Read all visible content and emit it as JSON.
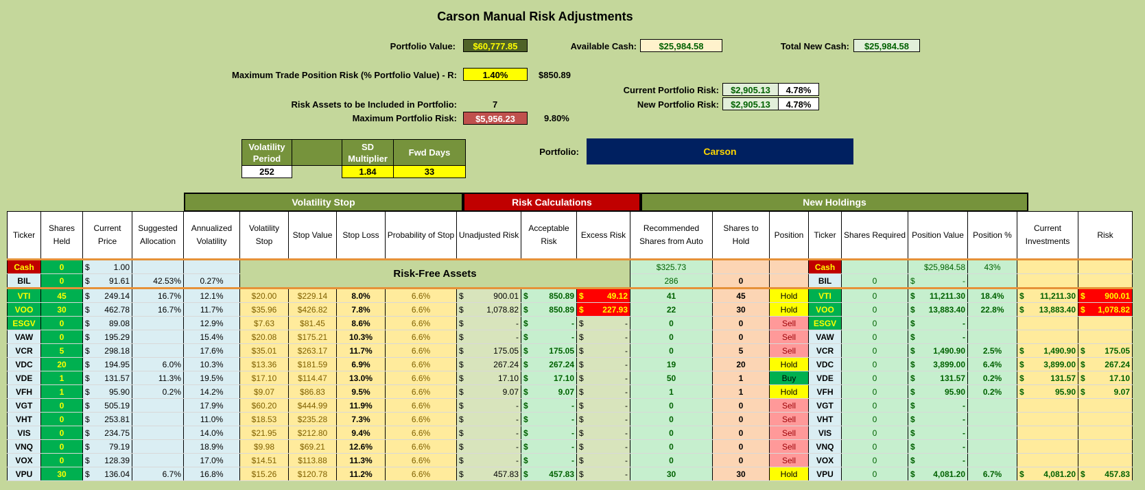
{
  "title": "Carson Manual Risk Adjustments",
  "portfolio_value": {
    "label": "Portfolio Value:",
    "value": "$60,777.85"
  },
  "available_cash": {
    "label": "Available Cash:",
    "value": "$25,984.58"
  },
  "total_new_cash": {
    "label": "Total New Cash:",
    "value": "$25,984.58"
  },
  "max_trade_risk": {
    "label": "Maximum Trade Position Risk (% Portfolio Value) - R:",
    "value": "1.40%",
    "amount": "$850.89"
  },
  "current_portfolio_risk": {
    "label": "Current Portfolio Risk:",
    "value": "$2,905.13",
    "pct": "4.78%"
  },
  "new_portfolio_risk": {
    "label": "New Portfolio Risk:",
    "value": "$2,905.13",
    "pct": "4.78%"
  },
  "risk_assets": {
    "label": "Risk Assets to be Included in Portfolio:",
    "value": "7"
  },
  "max_portfolio_risk": {
    "label": "Maximum Portfolio Risk:",
    "value": "$5,956.23",
    "pct": "9.80%"
  },
  "params": {
    "vol_period_label": "Volatility Period",
    "sd_label": "SD Multiplier",
    "fwd_label": "Fwd Days",
    "vol_period": "252",
    "sd": "1.84",
    "fwd": "33"
  },
  "portfolio": {
    "label": "Portfolio:",
    "value": "Carson"
  },
  "groups": {
    "vol_stop": "Volatility Stop",
    "risk_calc": "Risk Calculations",
    "new_holdings": "New Holdings"
  },
  "headers": [
    "Ticker",
    "Shares Held",
    "Current Price",
    "Suggested Allocation",
    "Annualized Volatility",
    "Volatility Stop",
    "Stop Value",
    "Stop Loss",
    "Probability of Stop",
    "Unadjusted Risk",
    "Acceptable Risk",
    "Excess Risk",
    "Recommended Shares from Auto",
    "Shares to Hold",
    "Position",
    "Ticker",
    "Shares Required",
    "Position Value",
    "Position %",
    "Current Investments",
    "Risk"
  ],
  "cash_row": {
    "ticker": "Cash",
    "shares": "0",
    "price": "1.00",
    "rec": "$325.73",
    "ticker2": "Cash",
    "pos_value": "$25,984.58",
    "pos_pct": "43%"
  },
  "bil_row": {
    "ticker": "BIL",
    "shares": "0",
    "price": "91.61",
    "alloc": "42.53%",
    "vol": "0.27%",
    "riskfree": "Risk-Free Assets",
    "rec": "286",
    "hold": "0",
    "ticker2": "BIL",
    "req": "0",
    "pos_value": "-"
  },
  "rows": [
    {
      "ticker": "VTI",
      "shares": "45",
      "price": "249.14",
      "alloc": "16.7%",
      "vol": "12.1%",
      "vstop": "$20.00",
      "sval": "$229.14",
      "sloss": "8.0%",
      "prob": "6.6%",
      "unadj": "900.01",
      "accept": "850.89",
      "excess": "49.12",
      "rec": "41",
      "hold": "45",
      "pos": "Hold",
      "ticker2": "VTI",
      "req": "0",
      "pval": "11,211.30",
      "ppct": "18.4%",
      "curinv": "11,211.30",
      "risk": "900.01"
    },
    {
      "ticker": "VOO",
      "shares": "30",
      "price": "462.78",
      "alloc": "16.7%",
      "vol": "11.7%",
      "vstop": "$35.96",
      "sval": "$426.82",
      "sloss": "7.8%",
      "prob": "6.6%",
      "unadj": "1,078.82",
      "accept": "850.89",
      "excess": "227.93",
      "rec": "22",
      "hold": "30",
      "pos": "Hold",
      "ticker2": "VOO",
      "req": "0",
      "pval": "13,883.40",
      "ppct": "22.8%",
      "curinv": "13,883.40",
      "risk": "1,078.82"
    },
    {
      "ticker": "ESGV",
      "shares": "0",
      "price": "89.08",
      "alloc": "",
      "vol": "12.9%",
      "vstop": "$7.63",
      "sval": "$81.45",
      "sloss": "8.6%",
      "prob": "6.6%",
      "unadj": "-",
      "accept": "-",
      "excess": "-",
      "rec": "0",
      "hold": "0",
      "pos": "Sell",
      "ticker2": "ESGV",
      "req": "0",
      "pval": "-",
      "ppct": "",
      "curinv": "",
      "risk": ""
    },
    {
      "ticker": "VAW",
      "shares": "0",
      "price": "195.29",
      "alloc": "",
      "vol": "15.4%",
      "vstop": "$20.08",
      "sval": "$175.21",
      "sloss": "10.3%",
      "prob": "6.6%",
      "unadj": "-",
      "accept": "-",
      "excess": "-",
      "rec": "0",
      "hold": "0",
      "pos": "Sell",
      "ticker2": "VAW",
      "req": "0",
      "pval": "-",
      "ppct": "",
      "curinv": "",
      "risk": ""
    },
    {
      "ticker": "VCR",
      "shares": "5",
      "price": "298.18",
      "alloc": "",
      "vol": "17.6%",
      "vstop": "$35.01",
      "sval": "$263.17",
      "sloss": "11.7%",
      "prob": "6.6%",
      "unadj": "175.05",
      "accept": "175.05",
      "excess": "-",
      "rec": "0",
      "hold": "5",
      "pos": "Sell",
      "ticker2": "VCR",
      "req": "0",
      "pval": "1,490.90",
      "ppct": "2.5%",
      "curinv": "1,490.90",
      "risk": "175.05"
    },
    {
      "ticker": "VDC",
      "shares": "20",
      "price": "194.95",
      "alloc": "6.0%",
      "vol": "10.3%",
      "vstop": "$13.36",
      "sval": "$181.59",
      "sloss": "6.9%",
      "prob": "6.6%",
      "unadj": "267.24",
      "accept": "267.24",
      "excess": "-",
      "rec": "19",
      "hold": "20",
      "pos": "Hold",
      "ticker2": "VDC",
      "req": "0",
      "pval": "3,899.00",
      "ppct": "6.4%",
      "curinv": "3,899.00",
      "risk": "267.24"
    },
    {
      "ticker": "VDE",
      "shares": "1",
      "price": "131.57",
      "alloc": "11.3%",
      "vol": "19.5%",
      "vstop": "$17.10",
      "sval": "$114.47",
      "sloss": "13.0%",
      "prob": "6.6%",
      "unadj": "17.10",
      "accept": "17.10",
      "excess": "-",
      "rec": "50",
      "hold": "1",
      "pos": "Buy",
      "ticker2": "VDE",
      "req": "0",
      "pval": "131.57",
      "ppct": "0.2%",
      "curinv": "131.57",
      "risk": "17.10"
    },
    {
      "ticker": "VFH",
      "shares": "1",
      "price": "95.90",
      "alloc": "0.2%",
      "vol": "14.2%",
      "vstop": "$9.07",
      "sval": "$86.83",
      "sloss": "9.5%",
      "prob": "6.6%",
      "unadj": "9.07",
      "accept": "9.07",
      "excess": "-",
      "rec": "1",
      "hold": "1",
      "pos": "Hold",
      "ticker2": "VFH",
      "req": "0",
      "pval": "95.90",
      "ppct": "0.2%",
      "curinv": "95.90",
      "risk": "9.07"
    },
    {
      "ticker": "VGT",
      "shares": "0",
      "price": "505.19",
      "alloc": "",
      "vol": "17.9%",
      "vstop": "$60.20",
      "sval": "$444.99",
      "sloss": "11.9%",
      "prob": "6.6%",
      "unadj": "-",
      "accept": "-",
      "excess": "-",
      "rec": "0",
      "hold": "0",
      "pos": "Sell",
      "ticker2": "VGT",
      "req": "0",
      "pval": "-",
      "ppct": "",
      "curinv": "",
      "risk": ""
    },
    {
      "ticker": "VHT",
      "shares": "0",
      "price": "253.81",
      "alloc": "",
      "vol": "11.0%",
      "vstop": "$18.53",
      "sval": "$235.28",
      "sloss": "7.3%",
      "prob": "6.6%",
      "unadj": "-",
      "accept": "-",
      "excess": "-",
      "rec": "0",
      "hold": "0",
      "pos": "Sell",
      "ticker2": "VHT",
      "req": "0",
      "pval": "-",
      "ppct": "",
      "curinv": "",
      "risk": ""
    },
    {
      "ticker": "VIS",
      "shares": "0",
      "price": "234.75",
      "alloc": "",
      "vol": "14.0%",
      "vstop": "$21.95",
      "sval": "$212.80",
      "sloss": "9.4%",
      "prob": "6.6%",
      "unadj": "-",
      "accept": "-",
      "excess": "-",
      "rec": "0",
      "hold": "0",
      "pos": "Sell",
      "ticker2": "VIS",
      "req": "0",
      "pval": "-",
      "ppct": "",
      "curinv": "",
      "risk": ""
    },
    {
      "ticker": "VNQ",
      "shares": "0",
      "price": "79.19",
      "alloc": "",
      "vol": "18.9%",
      "vstop": "$9.98",
      "sval": "$69.21",
      "sloss": "12.6%",
      "prob": "6.6%",
      "unadj": "-",
      "accept": "-",
      "excess": "-",
      "rec": "0",
      "hold": "0",
      "pos": "Sell",
      "ticker2": "VNQ",
      "req": "0",
      "pval": "-",
      "ppct": "",
      "curinv": "",
      "risk": ""
    },
    {
      "ticker": "VOX",
      "shares": "0",
      "price": "128.39",
      "alloc": "",
      "vol": "17.0%",
      "vstop": "$14.51",
      "sval": "$113.88",
      "sloss": "11.3%",
      "prob": "6.6%",
      "unadj": "-",
      "accept": "-",
      "excess": "-",
      "rec": "0",
      "hold": "0",
      "pos": "Sell",
      "ticker2": "VOX",
      "req": "0",
      "pval": "-",
      "ppct": "",
      "curinv": "",
      "risk": ""
    },
    {
      "ticker": "VPU",
      "shares": "30",
      "price": "136.04",
      "alloc": "6.7%",
      "vol": "16.8%",
      "vstop": "$15.26",
      "sval": "$120.78",
      "sloss": "11.2%",
      "prob": "6.6%",
      "unadj": "457.83",
      "accept": "457.83",
      "excess": "-",
      "rec": "30",
      "hold": "30",
      "pos": "Hold",
      "ticker2": "VPU",
      "req": "0",
      "pval": "4,081.20",
      "ppct": "6.7%",
      "curinv": "4,081.20",
      "risk": "457.83"
    }
  ]
}
